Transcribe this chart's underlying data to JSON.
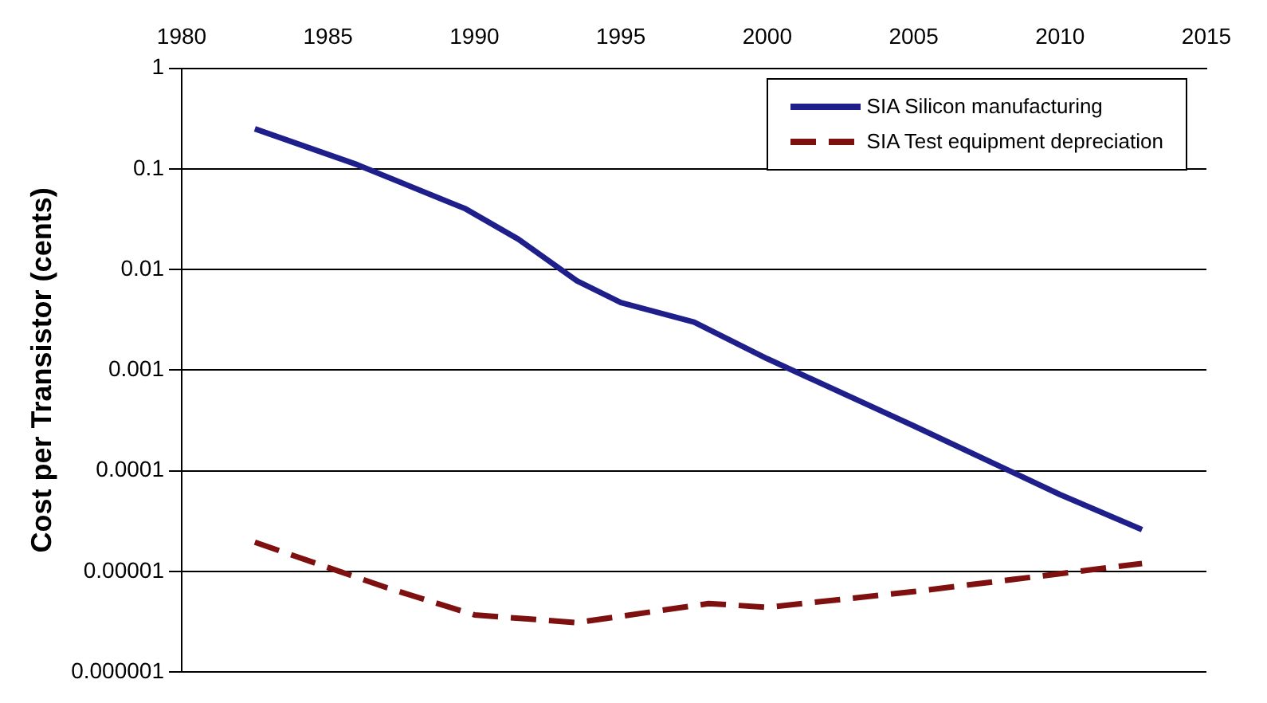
{
  "chart_data": {
    "type": "line",
    "ylabel": "Cost per Transistor (cents)",
    "xlim": [
      1980,
      2015
    ],
    "xticks": [
      1980,
      1985,
      1990,
      1995,
      2000,
      2005,
      2010,
      2015
    ],
    "ylim": [
      1e-06,
      1
    ],
    "yticks": [
      {
        "value": 1e-06,
        "label": "0.000001"
      },
      {
        "value": 1e-05,
        "label": "0.00001"
      },
      0.0001,
      0.001,
      0.01,
      0.1,
      1
    ],
    "log": "y",
    "grid": "y",
    "legend": "top right",
    "marker": "none",
    "series": [
      {
        "name": "SIA Silicon manufacturing",
        "color": "#1f1f8c",
        "line_style": "solid",
        "x": [
          1982.5,
          1986,
          1989.7,
          1991.5,
          1993.5,
          1995,
          1997.5,
          2000,
          2005,
          2010,
          2012.8
        ],
        "values": [
          0.25,
          0.11,
          0.04,
          0.02,
          0.0077,
          0.0047,
          0.003,
          0.0013,
          0.00028,
          5.8e-05,
          2.6e-05
        ]
      },
      {
        "name": "SIA Test equipment depreciation",
        "color": "#7f1010",
        "line_style": "dashed",
        "x": [
          1982.5,
          1987,
          1990,
          1993.5,
          1998,
          2000,
          2005,
          2010,
          2012.8
        ],
        "values": [
          1.95e-05,
          6.9e-06,
          3.7e-06,
          3.1e-06,
          4.8e-06,
          4.4e-06,
          6.3e-06,
          9.5e-06,
          1.2e-05
        ]
      }
    ]
  }
}
